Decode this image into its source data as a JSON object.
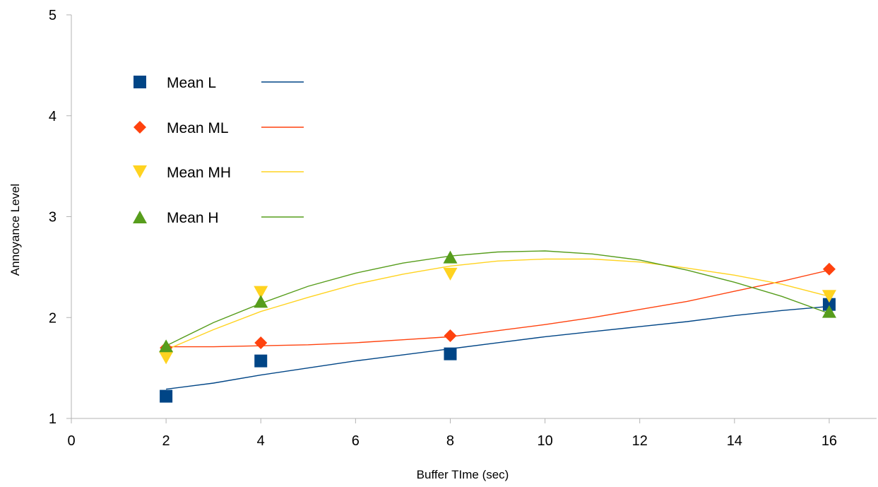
{
  "chart_data": {
    "type": "scatter",
    "xlabel": "Buffer TIme (sec)",
    "ylabel": "Annoyance Level",
    "xlim": [
      0,
      17
    ],
    "ylim": [
      1,
      5
    ],
    "xticks": [
      "0",
      "2",
      "4",
      "6",
      "8",
      "10",
      "12",
      "14",
      "16"
    ],
    "yticks": [
      "1",
      "2",
      "3",
      "4",
      "5"
    ],
    "grid": false,
    "legend_position": "top-left",
    "trendlines": true,
    "series": [
      {
        "name": "Mean L",
        "marker": "square",
        "color": "#004586",
        "x": [
          2,
          4,
          8,
          16
        ],
        "y": [
          1.22,
          1.57,
          1.64,
          2.13
        ],
        "trend": [
          [
            2,
            1.29
          ],
          [
            2.5,
            1.32
          ],
          [
            3,
            1.35
          ],
          [
            4,
            1.43
          ],
          [
            5,
            1.5
          ],
          [
            6,
            1.57
          ],
          [
            7,
            1.63
          ],
          [
            8,
            1.69
          ],
          [
            9,
            1.75
          ],
          [
            10,
            1.81
          ],
          [
            11,
            1.86
          ],
          [
            12,
            1.91
          ],
          [
            13,
            1.96
          ],
          [
            14,
            2.02
          ],
          [
            15,
            2.07
          ],
          [
            16,
            2.11
          ]
        ]
      },
      {
        "name": "Mean ML",
        "marker": "diamond",
        "color": "#ff420e",
        "x": [
          2,
          4,
          8,
          16
        ],
        "y": [
          1.7,
          1.75,
          1.82,
          2.48
        ],
        "trend": [
          [
            2,
            1.71
          ],
          [
            3,
            1.71
          ],
          [
            4,
            1.72
          ],
          [
            5,
            1.73
          ],
          [
            6,
            1.75
          ],
          [
            7,
            1.78
          ],
          [
            8,
            1.81
          ],
          [
            9,
            1.87
          ],
          [
            10,
            1.93
          ],
          [
            11,
            2.0
          ],
          [
            12,
            2.08
          ],
          [
            13,
            2.16
          ],
          [
            14,
            2.26
          ],
          [
            15,
            2.36
          ],
          [
            16,
            2.47
          ]
        ]
      },
      {
        "name": "Mean MH",
        "marker": "triangle-down",
        "color": "#ffd320",
        "x": [
          2,
          4,
          8,
          16
        ],
        "y": [
          1.6,
          2.25,
          2.43,
          2.21
        ],
        "trend": [
          [
            2,
            1.68
          ],
          [
            3,
            1.88
          ],
          [
            4,
            2.06
          ],
          [
            5,
            2.2
          ],
          [
            6,
            2.33
          ],
          [
            7,
            2.43
          ],
          [
            8,
            2.51
          ],
          [
            9,
            2.56
          ],
          [
            10,
            2.58
          ],
          [
            11,
            2.58
          ],
          [
            12,
            2.55
          ],
          [
            13,
            2.49
          ],
          [
            14,
            2.42
          ],
          [
            15,
            2.33
          ],
          [
            16,
            2.21
          ]
        ]
      },
      {
        "name": "Mean H",
        "marker": "triangle-up",
        "color": "#579d1c",
        "x": [
          2,
          4,
          8,
          16
        ],
        "y": [
          1.72,
          2.16,
          2.6,
          2.06
        ],
        "trend": [
          [
            2,
            1.72
          ],
          [
            3,
            1.95
          ],
          [
            4,
            2.14
          ],
          [
            5,
            2.31
          ],
          [
            6,
            2.44
          ],
          [
            7,
            2.54
          ],
          [
            8,
            2.61
          ],
          [
            9,
            2.65
          ],
          [
            10,
            2.66
          ],
          [
            11,
            2.63
          ],
          [
            12,
            2.57
          ],
          [
            13,
            2.47
          ],
          [
            14,
            2.35
          ],
          [
            15,
            2.21
          ],
          [
            16,
            2.04
          ]
        ]
      }
    ]
  }
}
